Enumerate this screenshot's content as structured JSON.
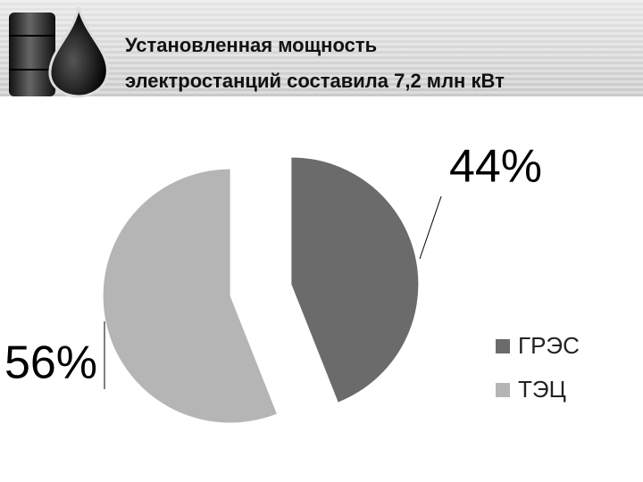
{
  "chart_data": {
    "type": "pie",
    "title": [
      "Установленная мощность",
      "электростанций составила 7,2 млн кВт"
    ],
    "categories": [
      "ГРЭС",
      "ТЭЦ"
    ],
    "values": [
      44,
      56
    ],
    "value_labels": [
      "44%",
      "56%"
    ],
    "colors": [
      "#6b6b6b",
      "#b5b5b5"
    ],
    "legend": "right"
  }
}
